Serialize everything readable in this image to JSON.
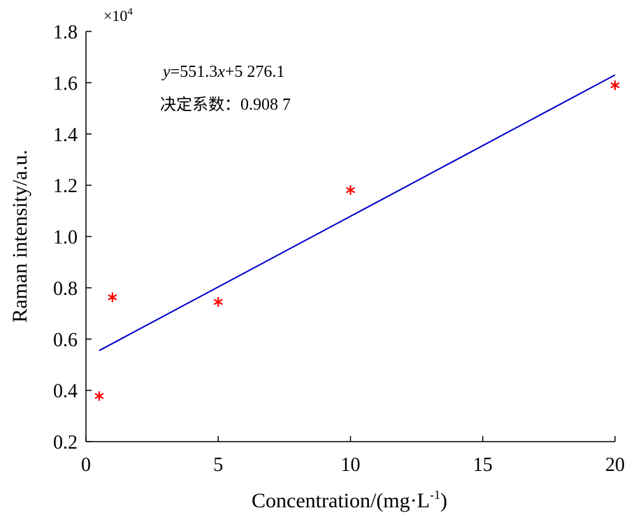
{
  "chart_data": {
    "type": "scatter",
    "xlabel": "Concentration/(mg·L",
    "xlabel_sup": "-1",
    "xlabel_end": ")",
    "ylabel": "Raman intensity/a.u.",
    "y_multiplier": "×10",
    "y_multiplier_exp": "4",
    "xlim": [
      0,
      20
    ],
    "ylim": [
      0.2,
      1.8
    ],
    "xticks": [
      0,
      5,
      10,
      15,
      20
    ],
    "xtick_labels": [
      "0",
      "5",
      "10",
      "15",
      "20"
    ],
    "yticks": [
      0.2,
      0.4,
      0.6,
      0.8,
      1.0,
      1.2,
      1.4,
      1.6,
      1.8
    ],
    "ytick_labels": [
      "0.2",
      "0.4",
      "0.6",
      "0.8",
      "1.0",
      "1.2",
      "1.4",
      "1.6",
      "1.8"
    ],
    "grid": false,
    "series": [
      {
        "marker": "asterisk",
        "color": "#ff0000",
        "x": [
          0.5,
          1,
          5,
          10,
          20
        ],
        "y": [
          0.378,
          0.763,
          0.745,
          1.181,
          1.59
        ]
      }
    ],
    "fit_line": {
      "color": "#0000cc",
      "x": [
        0.5,
        20
      ],
      "y": [
        0.5552,
        1.6303
      ]
    },
    "annotations": {
      "equation_var": "y",
      "equation_mid": "=551.3",
      "equation_var2": "x",
      "equation_end": "+5 276.1",
      "r2_label": "决定系数：",
      "r2_value": "0.908 7"
    }
  }
}
